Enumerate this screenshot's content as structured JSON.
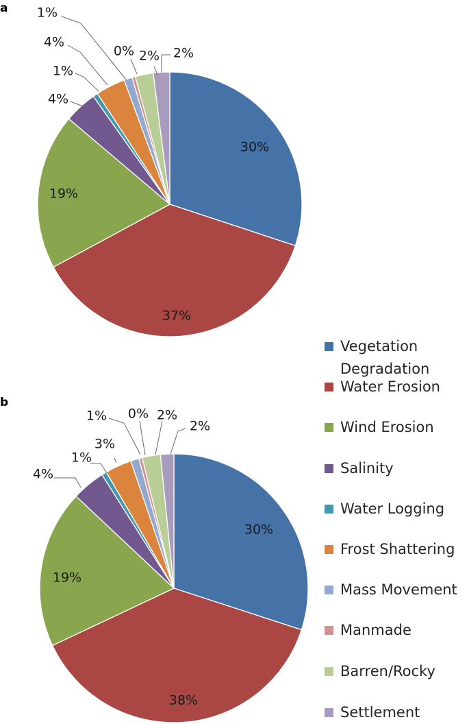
{
  "chart_data": [
    {
      "type": "pie",
      "panel_label": "a",
      "start": "12 o'clock, clockwise",
      "series": [
        {
          "name": "Vegetation Degradation",
          "value": 30,
          "label": "30%"
        },
        {
          "name": "Water Erosion",
          "value": 37,
          "label": "37%"
        },
        {
          "name": "Wind Erosion",
          "value": 19,
          "label": "19%"
        },
        {
          "name": "Salinity",
          "value": 4,
          "label": "4%"
        },
        {
          "name": "Water Logging",
          "value": 0.6,
          "label": "1%"
        },
        {
          "name": "Frost Shattering",
          "value": 3.6,
          "label": "4%"
        },
        {
          "name": "Mass Movement",
          "value": 1,
          "label": "1%"
        },
        {
          "name": "Manmade",
          "value": 0.4,
          "label": "0%"
        },
        {
          "name": "Barren/Rocky",
          "value": 2.2,
          "label": "2%"
        },
        {
          "name": "Settlement",
          "value": 2,
          "label": "2%"
        }
      ]
    },
    {
      "type": "pie",
      "panel_label": "b",
      "start": "12 o'clock, clockwise",
      "series": [
        {
          "name": "Vegetation Degradation",
          "value": 30,
          "label": "30%"
        },
        {
          "name": "Water Erosion",
          "value": 38,
          "label": "38%"
        },
        {
          "name": "Wind Erosion",
          "value": 19,
          "label": "19%"
        },
        {
          "name": "Salinity",
          "value": 4,
          "label": "4%"
        },
        {
          "name": "Water Logging",
          "value": 0.6,
          "label": "1%"
        },
        {
          "name": "Frost Shattering",
          "value": 3.2,
          "label": "3%"
        },
        {
          "name": "Mass Movement",
          "value": 1,
          "label": "1%"
        },
        {
          "name": "Manmade",
          "value": 0.4,
          "label": "0%"
        },
        {
          "name": "Barren/Rocky",
          "value": 2.2,
          "label": "2%"
        },
        {
          "name": "Settlement",
          "value": 1.6,
          "label": "2%"
        }
      ]
    }
  ],
  "legend": {
    "placement": "right",
    "items": [
      {
        "name": "Vegetation Degradation",
        "color": "#4572a7"
      },
      {
        "name": "Water Erosion",
        "color": "#aa4643"
      },
      {
        "name": "Wind Erosion",
        "color": "#89a54e"
      },
      {
        "name": "Salinity",
        "color": "#71588f"
      },
      {
        "name": "Water Logging",
        "color": "#4198af"
      },
      {
        "name": "Frost Shattering",
        "color": "#db843d"
      },
      {
        "name": "Mass Movement",
        "color": "#93a9cf"
      },
      {
        "name": "Manmade",
        "color": "#d19392"
      },
      {
        "name": "Barren/Rocky",
        "color": "#b9cd96"
      },
      {
        "name": "Settlement",
        "color": "#a99bbd"
      }
    ]
  }
}
